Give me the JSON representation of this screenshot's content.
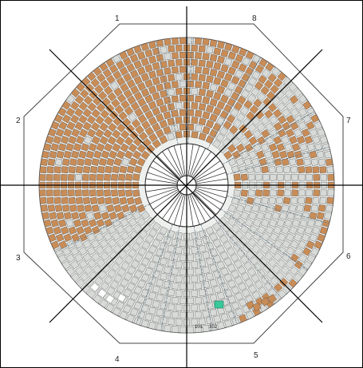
{
  "diagram": {
    "type": "circular-tile-layout",
    "sector_labels": [
      "1",
      "8",
      "7",
      "6",
      "5",
      "4",
      "3",
      "2"
    ],
    "small_labels": [
      "101",
      "102"
    ],
    "colors": {
      "filled": "#c88c57",
      "empty": "#d7dad7",
      "highlight": "#39c99a",
      "empty_white": "#ffffff",
      "line": "#000000",
      "outline": "#4a4a4a"
    }
  }
}
